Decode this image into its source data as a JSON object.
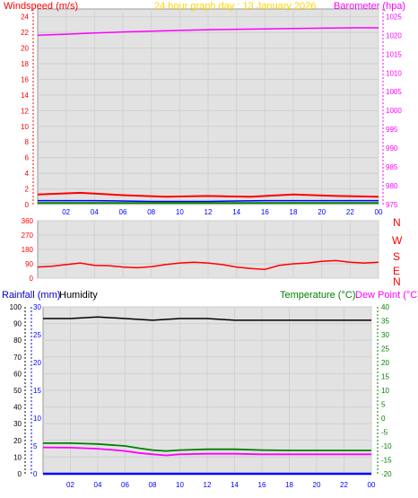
{
  "header": {
    "left_title": "Windspeed (m/s)",
    "center_title": "24 hour graph day : 13 January 2026",
    "right_title": "Barometer (hpa)"
  },
  "compass": [
    "N",
    "W",
    "S",
    "E",
    "N"
  ],
  "bottom_titles": {
    "rainfall": "Rainfall (mm)",
    "humidity": "Humidity",
    "temperature": "Temperature (°C)",
    "dew_point": "Dew Point (°C)"
  },
  "colors": {
    "wind": "#ff0000",
    "gust": "#ff0000",
    "avg_wind": "#0000ff",
    "wind_green": "#008000",
    "barometer": "#ff00ff",
    "direction": "#ff0000",
    "humidity": "#000000",
    "temperature": "#008000",
    "dew_point": "#ff00ff",
    "rainfall": "#0000ff",
    "rain_rate": "#ffd700",
    "x_ticks": "#0000ff",
    "center_title": "#ffd700"
  },
  "chart_data": [
    {
      "type": "line",
      "title": "24 hour graph day : 13 January 2026",
      "x_ticks": [
        "02",
        "04",
        "06",
        "08",
        "10",
        "12",
        "14",
        "16",
        "18",
        "20",
        "22",
        "00"
      ],
      "y_left": {
        "label": "Windspeed (m/s)",
        "ticks": [
          0,
          2,
          4,
          6,
          8,
          10,
          12,
          14,
          16,
          18,
          20,
          22,
          24
        ],
        "ylim": [
          0,
          25
        ]
      },
      "y_right": {
        "label": "Barometer (hpa)",
        "ticks": [
          975,
          980,
          985,
          990,
          995,
          1000,
          1005,
          1010,
          1015,
          1020,
          1025
        ],
        "ylim": [
          975,
          1027
        ]
      },
      "grid": true,
      "series": [
        {
          "name": "Barometer (hpa)",
          "axis": "right",
          "x_hours": [
            0,
            2,
            4,
            6,
            8,
            10,
            12,
            14,
            16,
            18,
            20,
            22,
            24
          ],
          "values": [
            1020.0,
            1020.3,
            1020.6,
            1020.9,
            1021.1,
            1021.3,
            1021.5,
            1021.6,
            1021.7,
            1021.8,
            1021.9,
            1022.0,
            1022.0
          ]
        },
        {
          "axis": "left",
          "x_hours": [
            0,
            3,
            6,
            9,
            12,
            15,
            18,
            21,
            24
          ],
          "values": [
            1.3,
            1.5,
            1.2,
            1.0,
            1.1,
            1.0,
            1.3,
            1.1,
            1.0
          ]
        },
        {
          "axis": "left",
          "x_hours": [
            0,
            4,
            8,
            12,
            16,
            20,
            24
          ],
          "values": [
            0.5,
            0.5,
            0.4,
            0.4,
            0.5,
            0.5,
            0.5
          ]
        },
        {
          "axis": "left",
          "x_hours": [
            0,
            6,
            12,
            18,
            24
          ],
          "values": [
            0.2,
            0.2,
            0.2,
            0.2,
            0.2
          ]
        }
      ]
    },
    {
      "type": "line",
      "y_left": {
        "ticks": [
          0,
          90,
          180,
          270,
          360
        ],
        "ylim": [
          0,
          360
        ]
      },
      "grid": true,
      "series": [
        {
          "axis": "left",
          "x_hours": [
            0,
            1,
            2,
            3,
            4,
            5,
            6,
            7,
            8,
            9,
            10,
            11,
            12,
            13,
            14,
            15,
            16,
            17,
            18,
            19,
            20,
            21,
            22,
            23,
            24
          ],
          "values": [
            70,
            75,
            85,
            95,
            80,
            78,
            70,
            65,
            72,
            85,
            95,
            100,
            95,
            85,
            70,
            60,
            55,
            80,
            90,
            95,
            105,
            110,
            100,
            95,
            100
          ]
        }
      ]
    },
    {
      "type": "line",
      "x_ticks": [
        "02",
        "04",
        "06",
        "08",
        "10",
        "12",
        "14",
        "16",
        "18",
        "20",
        "22",
        "00"
      ],
      "y_left_outer": {
        "label": "Rainfall (mm)",
        "ticks": [
          0,
          5,
          10,
          15,
          20,
          25,
          30
        ],
        "ylim": [
          0,
          30
        ]
      },
      "y_left_inner": {
        "label": "Humidity",
        "ticks": [
          0,
          10,
          20,
          30,
          40,
          50,
          60,
          70,
          80,
          90,
          100
        ],
        "ylim": [
          0,
          100
        ]
      },
      "y_right": {
        "label": "Temperature (°C)",
        "ticks": [
          -20,
          -15,
          -10,
          -5,
          0,
          5,
          10,
          15,
          20,
          25,
          30,
          35,
          40
        ],
        "ylim": [
          -20,
          40
        ]
      },
      "grid": true,
      "series": [
        {
          "name": "Humidity",
          "axis": "left_inner",
          "x_hours": [
            0,
            2,
            4,
            6,
            8,
            10,
            12,
            14,
            16,
            18,
            20,
            22,
            24
          ],
          "values": [
            93,
            93,
            94,
            93,
            92,
            93,
            93,
            92,
            92,
            92,
            92,
            92,
            92
          ]
        },
        {
          "name": "Temperature (°C)",
          "axis": "right",
          "x_hours": [
            0,
            2,
            4,
            6,
            7,
            8,
            9,
            10,
            12,
            14,
            16,
            18,
            20,
            22,
            24
          ],
          "values": [
            -9.0,
            -9.0,
            -9.3,
            -10.0,
            -10.8,
            -11.5,
            -11.8,
            -11.5,
            -11.2,
            -11.2,
            -11.5,
            -11.6,
            -11.6,
            -11.6,
            -11.6
          ]
        },
        {
          "name": "Dew Point (°C)",
          "axis": "right",
          "x_hours": [
            0,
            2,
            4,
            6,
            7,
            8,
            9,
            10,
            12,
            14,
            16,
            18,
            20,
            22,
            24
          ],
          "values": [
            -10.5,
            -10.6,
            -11.0,
            -11.8,
            -12.5,
            -13.0,
            -13.4,
            -13.0,
            -12.8,
            -12.8,
            -13.0,
            -13.0,
            -13.0,
            -13.0,
            -13.0
          ]
        },
        {
          "name": "Rainfall (mm)",
          "axis": "left_outer",
          "x_hours": [
            0,
            24
          ],
          "values": [
            0,
            0
          ]
        }
      ]
    }
  ]
}
